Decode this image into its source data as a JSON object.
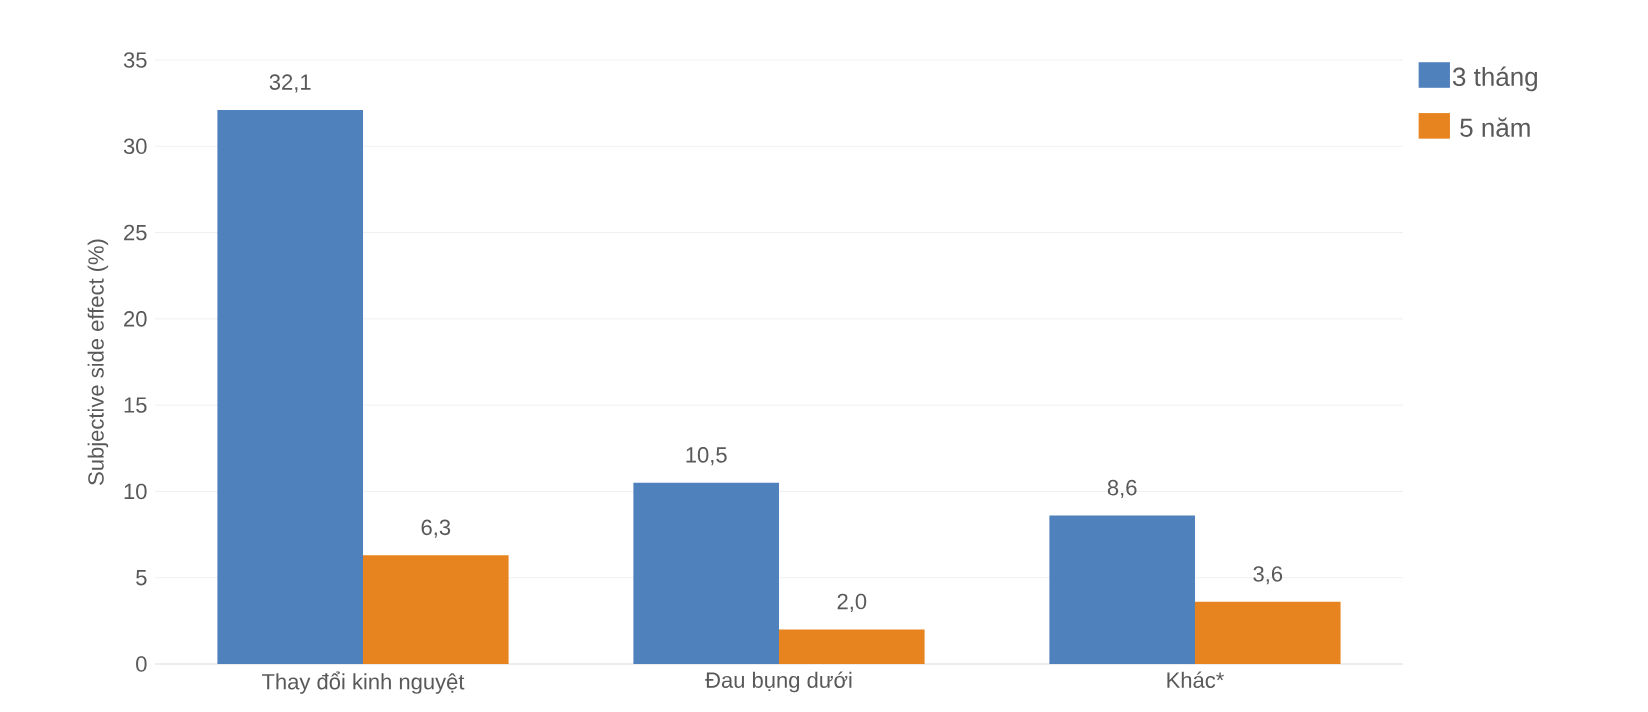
{
  "chart_data": {
    "type": "bar",
    "ylabel": "Subjective side effect (%)",
    "categories": [
      "Thay đổi kinh nguyệt",
      "Đau bụng dưới",
      "Khác*"
    ],
    "series": [
      {
        "name": "3 tháng",
        "color": "#4f81bd",
        "values": [
          32.1,
          10.5,
          8.6
        ],
        "value_labels": [
          "32,1",
          "10,5",
          "8,6"
        ]
      },
      {
        "name": "5 năm",
        "color": "#e8841f",
        "values": [
          6.3,
          2.0,
          3.6
        ],
        "value_labels": [
          "6,3",
          "2,0",
          "3,6"
        ]
      }
    ],
    "ylim": [
      0,
      35
    ],
    "yticks": [
      0,
      5,
      10,
      15,
      20,
      25,
      30,
      35
    ],
    "grid": "y",
    "legend": "top right"
  }
}
